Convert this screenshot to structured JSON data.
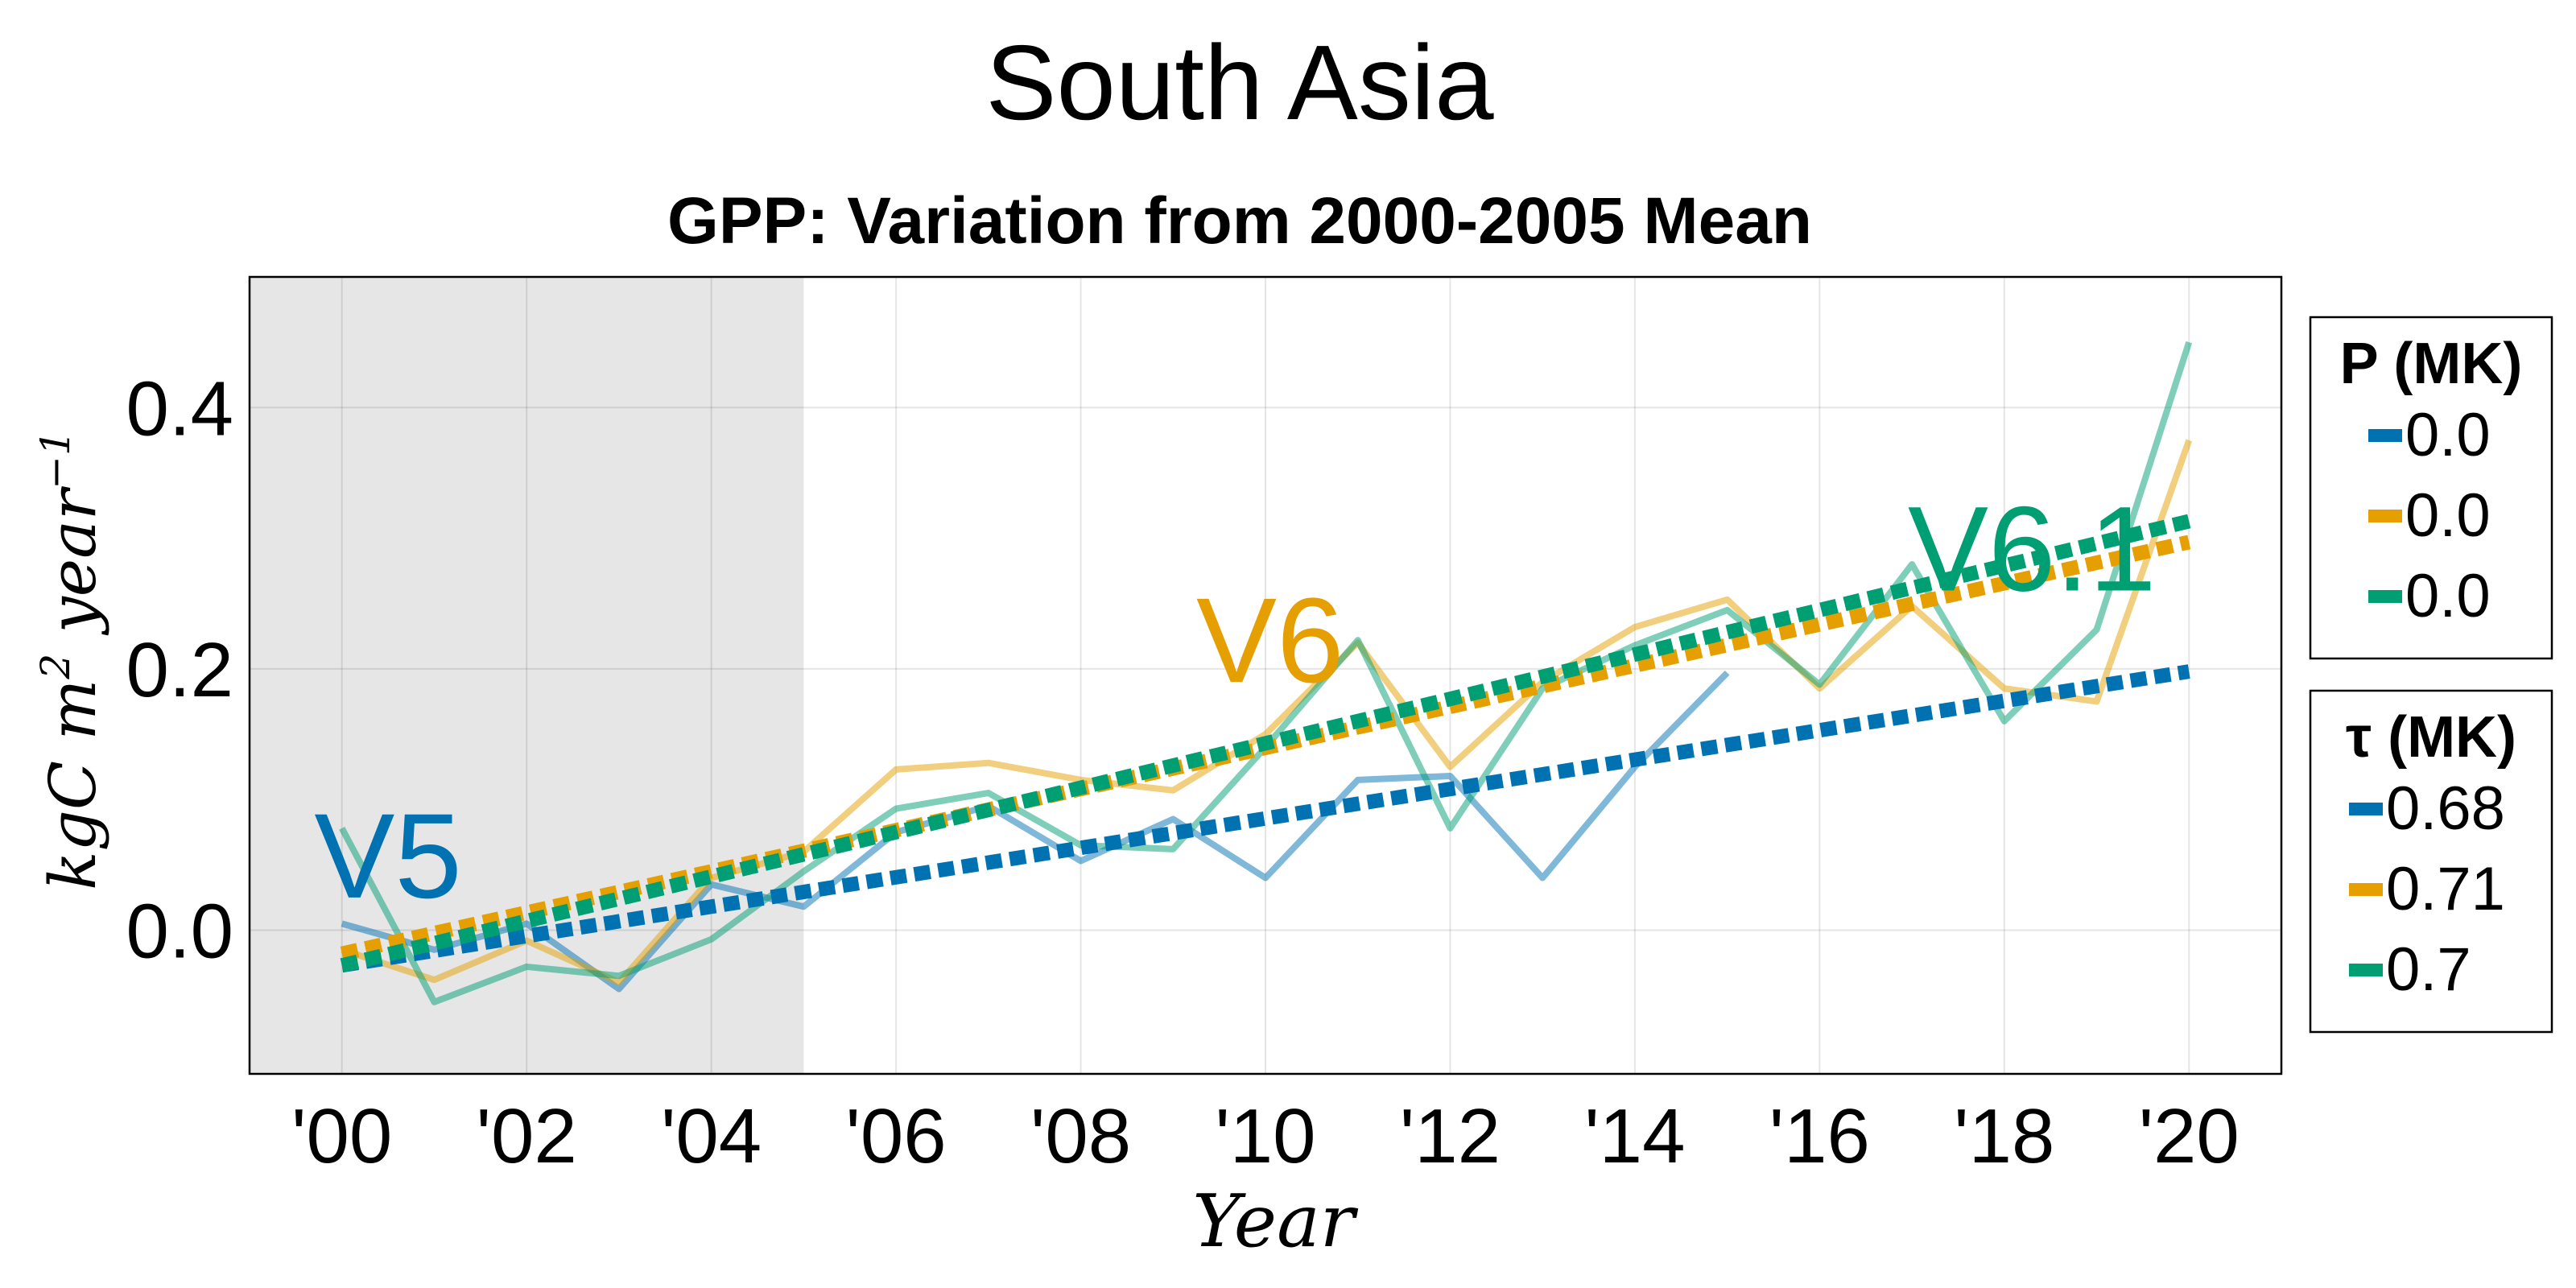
{
  "suptitle": "South Asia",
  "chart_data": {
    "type": "line",
    "title": "GPP: Variation from 2000-2005 Mean",
    "xlabel": "Year",
    "ylabel": "kgC m² year⁻¹",
    "ylabel_parts": {
      "unit1": "kgC m",
      "exp1": "2",
      "unit2": " year",
      "exp2": "−1"
    },
    "xlim": [
      1999,
      2021
    ],
    "ylim": [
      -0.11,
      0.5
    ],
    "x_ticks": [
      2000,
      2002,
      2004,
      2006,
      2008,
      2010,
      2012,
      2014,
      2016,
      2018,
      2020
    ],
    "x_tick_labels": [
      "'00",
      "'02",
      "'04",
      "'06",
      "'08",
      "'10",
      "'12",
      "'14",
      "'16",
      "'18",
      "'20"
    ],
    "y_ticks": [
      0.0,
      0.2,
      0.4
    ],
    "y_tick_labels": [
      "0.0",
      "0.2",
      "0.4"
    ],
    "grid": true,
    "baseline_shading": {
      "from": 1999,
      "to": 2005,
      "color": "#e6e6e6"
    },
    "series": [
      {
        "name": "V5",
        "color": "#0072b2",
        "x": [
          2000,
          2001,
          2002,
          2003,
          2004,
          2005,
          2006,
          2007,
          2008,
          2009,
          2010,
          2011,
          2012,
          2013,
          2014,
          2015
        ],
        "values": [
          0.005,
          -0.015,
          0.005,
          -0.045,
          0.035,
          0.018,
          0.075,
          0.095,
          0.053,
          0.085,
          0.04,
          0.115,
          0.118,
          0.04,
          0.125,
          0.197
        ],
        "trend": {
          "x": [
            2000,
            2020
          ],
          "y": [
            -0.027,
            0.198
          ]
        },
        "label_pos": {
          "x": 2000.5,
          "y": 0.025
        }
      },
      {
        "name": "V6",
        "color": "#e69f00",
        "x": [
          2000,
          2001,
          2002,
          2003,
          2004,
          2005,
          2006,
          2007,
          2008,
          2009,
          2010,
          2011,
          2012,
          2013,
          2014,
          2015,
          2016,
          2017,
          2018,
          2019,
          2020
        ],
        "values": [
          -0.015,
          -0.038,
          -0.008,
          -0.04,
          0.04,
          0.06,
          0.123,
          0.128,
          0.115,
          0.107,
          0.15,
          0.22,
          0.125,
          0.19,
          0.232,
          0.253,
          0.185,
          0.248,
          0.185,
          0.175,
          0.375
        ],
        "trend": {
          "x": [
            2000,
            2020
          ],
          "y": [
            -0.018,
            0.297
          ]
        },
        "label_pos": {
          "x": 2010.05,
          "y": 0.19
        }
      },
      {
        "name": "V6.1",
        "color": "#009e73",
        "x": [
          2000,
          2001,
          2002,
          2003,
          2004,
          2005,
          2006,
          2007,
          2008,
          2009,
          2010,
          2011,
          2012,
          2013,
          2014,
          2015,
          2016,
          2017,
          2018,
          2019,
          2020
        ],
        "values": [
          0.078,
          -0.055,
          -0.028,
          -0.035,
          -0.007,
          0.045,
          0.093,
          0.105,
          0.065,
          0.062,
          0.14,
          0.222,
          0.078,
          0.185,
          0.218,
          0.245,
          0.188,
          0.28,
          0.16,
          0.23,
          0.45
        ],
        "trend": {
          "x": [
            2000,
            2020
          ],
          "y": [
            -0.027,
            0.313
          ]
        },
        "label_pos": {
          "x": 2018.3,
          "y": 0.26
        }
      }
    ],
    "legends": [
      {
        "title": "P (MK)",
        "entries": [
          {
            "label": "0.0",
            "color": "#0072b2"
          },
          {
            "label": "0.0",
            "color": "#e69f00"
          },
          {
            "label": "0.0",
            "color": "#009e73"
          }
        ]
      },
      {
        "title": "τ (MK)",
        "entries": [
          {
            "label": "0.68",
            "color": "#0072b2"
          },
          {
            "label": "0.71",
            "color": "#e69f00"
          },
          {
            "label": "0.7",
            "color": "#009e73"
          }
        ]
      }
    ],
    "legend_placement": "right"
  }
}
